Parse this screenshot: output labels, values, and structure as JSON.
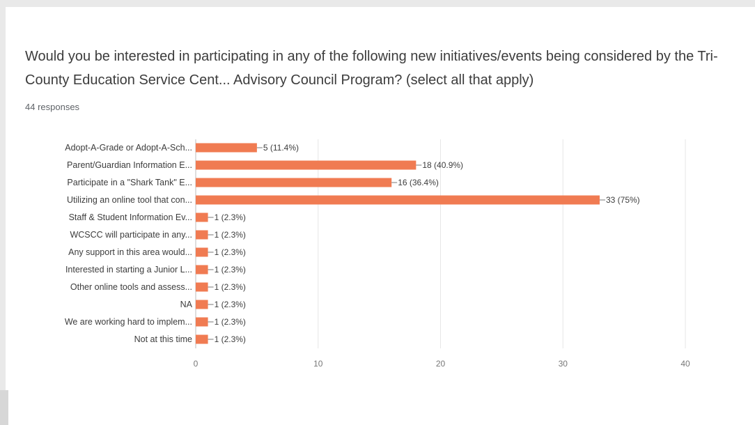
{
  "header": {
    "question": "Would you be interested in participating in any of the following new initiatives/events being considered by the Tri-County Education Service Cent... Advisory Council Program? (select all that apply)",
    "responses": "44 responses"
  },
  "colors": {
    "bar": "#f07b52",
    "grid": "#e6e6e6",
    "text": "#3c3c3c",
    "tick": "#777777"
  },
  "chart_data": {
    "type": "bar",
    "orientation": "horizontal",
    "categories": [
      "Adopt-A-Grade or Adopt-A-Sch...",
      "Parent/Guardian Information E...",
      "Participate in a \"Shark Tank\" E...",
      "Utilizing an online tool that con...",
      "Staff & Student Information Ev...",
      "WCSCC will participate in any...",
      "Any support in this area would...",
      "Interested in starting a Junior L...",
      "Other online tools and assess...",
      "NA",
      "We are working hard to implem...",
      "Not at this time"
    ],
    "values": [
      5,
      18,
      16,
      33,
      1,
      1,
      1,
      1,
      1,
      1,
      1,
      1
    ],
    "data_labels": [
      "5 (11.4%)",
      "18 (40.9%)",
      "16 (36.4%)",
      "33 (75%)",
      "1 (2.3%)",
      "1 (2.3%)",
      "1 (2.3%)",
      "1 (2.3%)",
      "1 (2.3%)",
      "1 (2.3%)",
      "1 (2.3%)",
      "1 (2.3%)"
    ],
    "xlim": [
      0,
      40
    ],
    "xticks": [
      "0",
      "10",
      "20",
      "30",
      "40"
    ],
    "grid": true
  }
}
